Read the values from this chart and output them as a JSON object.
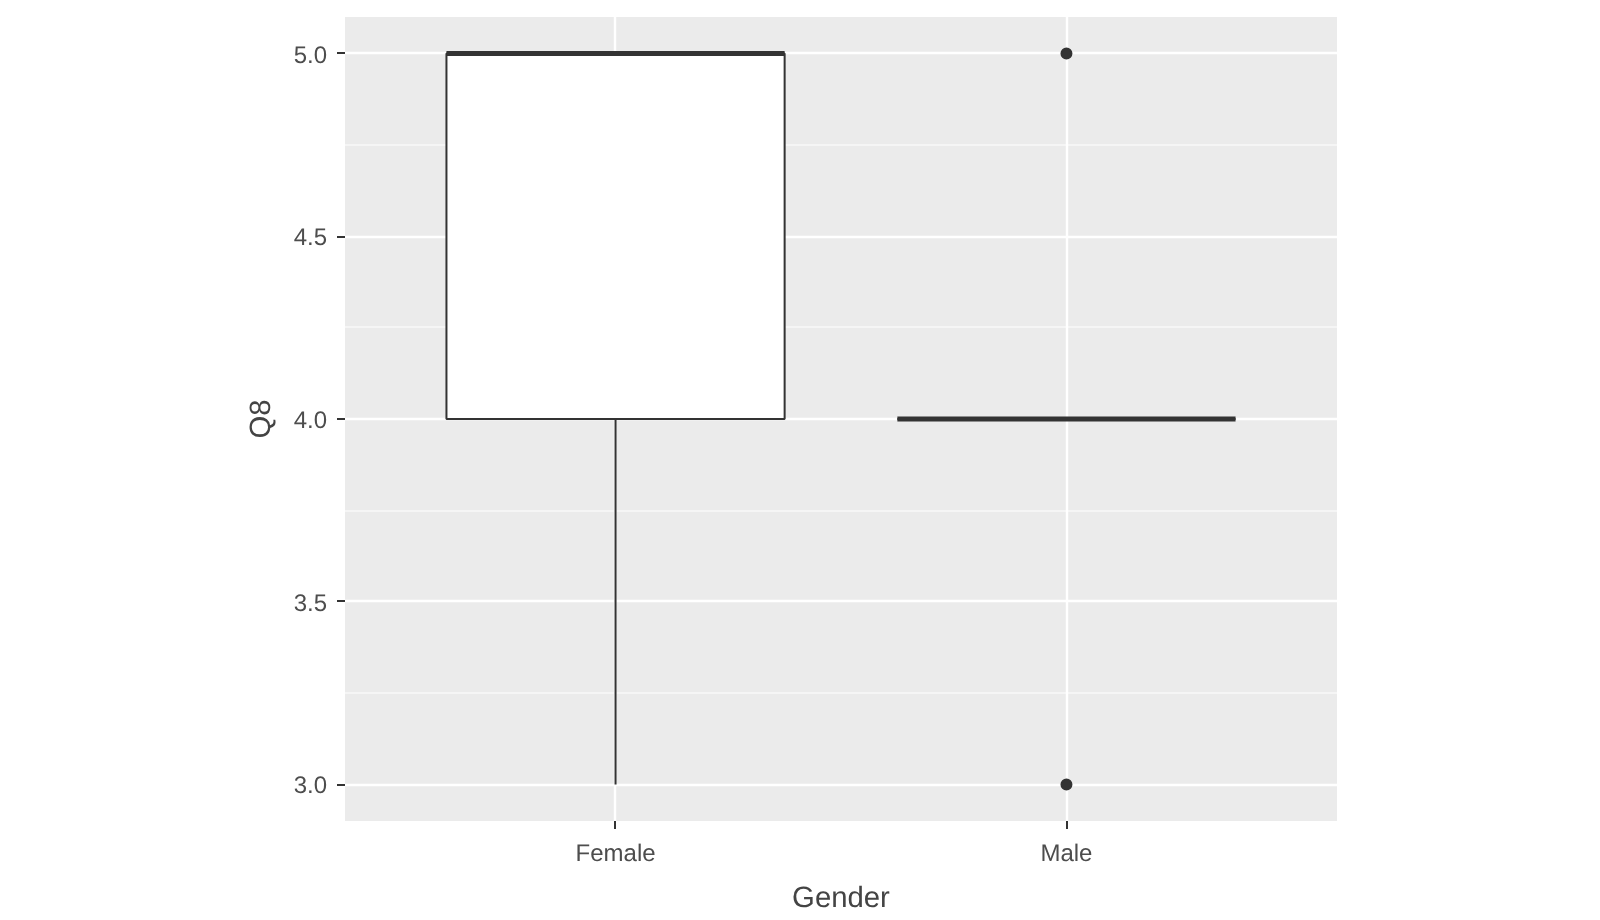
{
  "chart_data": {
    "type": "box",
    "xlabel": "Gender",
    "ylabel": "Q8",
    "categories": [
      "Female",
      "Male"
    ],
    "boxes": [
      {
        "low": 3,
        "q1": 4,
        "median": 5,
        "q3": 5,
        "high": 5
      },
      {
        "low": 4,
        "q1": 4,
        "median": 4,
        "q3": 4,
        "high": 4,
        "outliers": [
          3,
          5
        ]
      }
    ],
    "ylim": [
      2.9,
      5.1
    ],
    "yticks": [
      {
        "value": 3,
        "label": "3.0"
      },
      3.5,
      {
        "value": 4,
        "label": "4.0"
      },
      4.5,
      {
        "value": 5,
        "label": "5.0"
      }
    ],
    "grid": true
  }
}
